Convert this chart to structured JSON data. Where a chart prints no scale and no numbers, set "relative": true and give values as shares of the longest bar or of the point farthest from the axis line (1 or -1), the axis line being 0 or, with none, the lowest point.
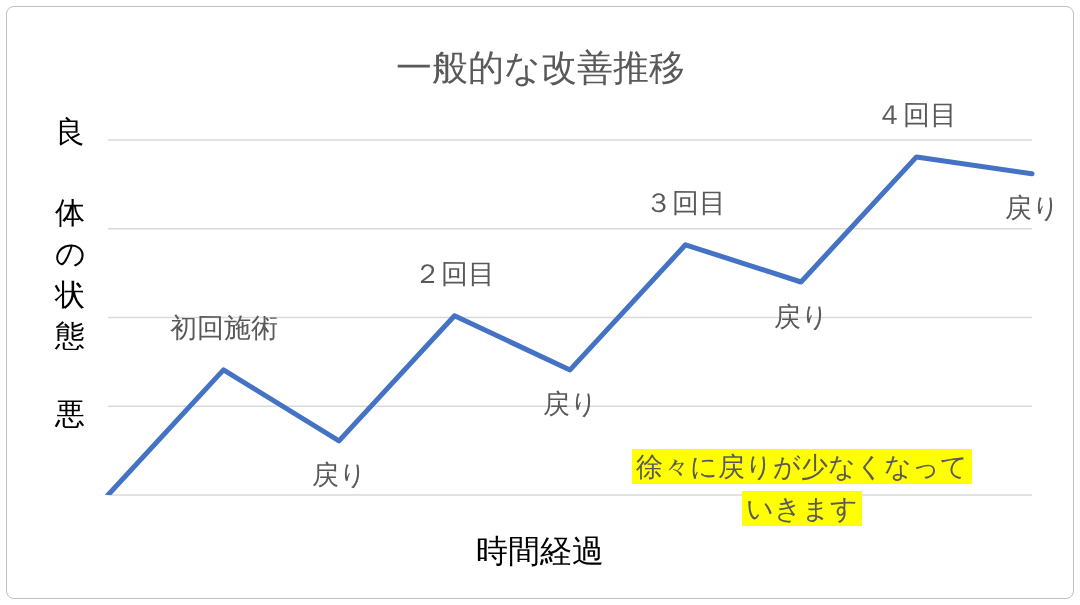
{
  "chart_data": {
    "type": "line",
    "title": "一般的な改善推移",
    "xlabel": "時間経過",
    "ylabel": "体の状態",
    "relative": true,
    "grid": true,
    "marker": "none",
    "line_style": "solid",
    "annotations": [
      "良",
      "悪",
      "徐々に戻りが少なくなっていきます",
      "初回施術",
      "戻り",
      "２回目",
      "戻り",
      "３回目",
      "戻り",
      "４回目",
      "戻り"
    ],
    "categories": [
      null,
      null,
      null,
      null,
      null,
      null,
      null,
      null,
      null
    ],
    "series": [
      {
        "color": "#4472c4",
        "values": [
          0,
          0.37,
          0.16,
          0.53,
          0.37,
          0.74,
          0.63,
          1,
          0.95
        ]
      }
    ]
  }
}
